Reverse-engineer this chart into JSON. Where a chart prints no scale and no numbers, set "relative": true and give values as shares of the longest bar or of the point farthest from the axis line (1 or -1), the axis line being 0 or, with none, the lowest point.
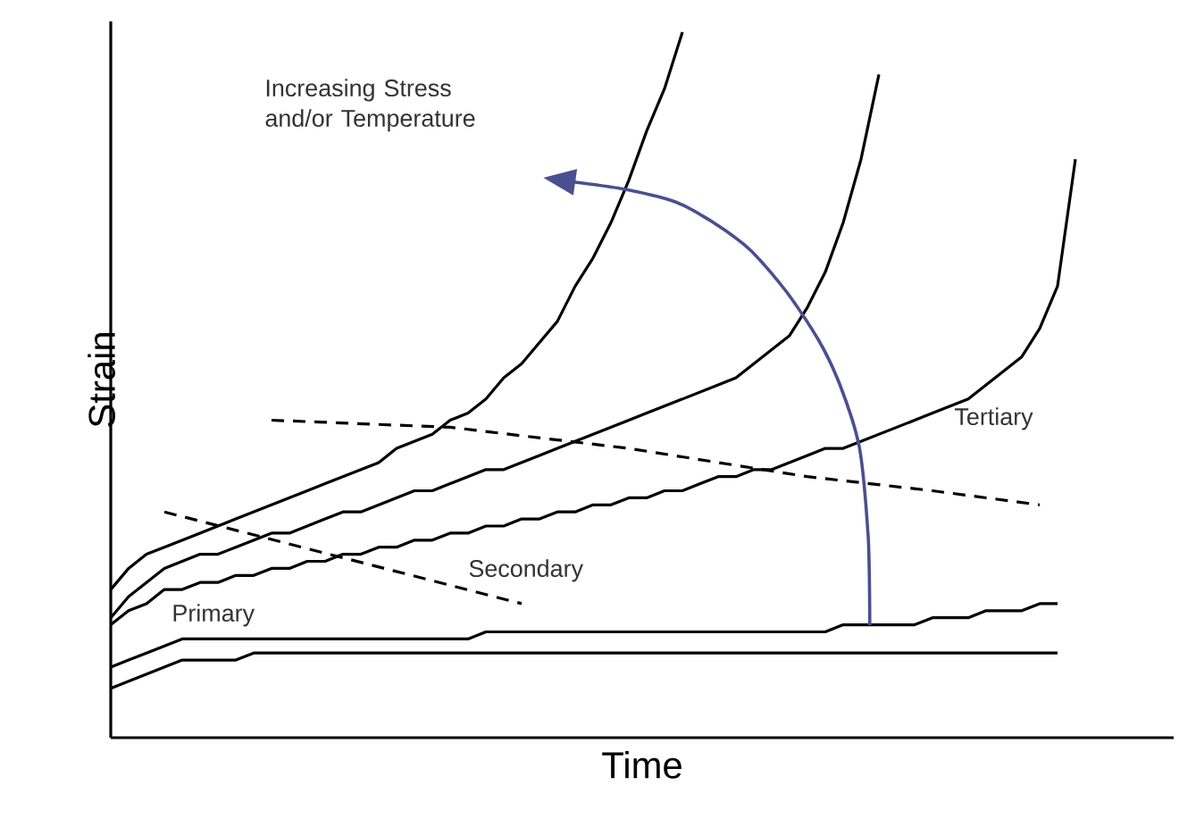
{
  "chart_data": {
    "type": "line",
    "relative": true,
    "xlabel": "Time",
    "ylabel": "Strain",
    "marker": "none",
    "annotations": [
      "Increasing Stress and/or Temperature",
      "Primary",
      "Secondary",
      "Tertiary"
    ],
    "categories": [
      null,
      null,
      null,
      null,
      null,
      null,
      null,
      null,
      null,
      null,
      null,
      null,
      null,
      null,
      null,
      null,
      null,
      null,
      null,
      null,
      null,
      null,
      null,
      null,
      null,
      null,
      null,
      null,
      null,
      null,
      null,
      null,
      null,
      null,
      null,
      null,
      null,
      null,
      null,
      null,
      null,
      null,
      null,
      null,
      null,
      null,
      null,
      null,
      null,
      null,
      null,
      null,
      null,
      null,
      null,
      null,
      null,
      null,
      null,
      null
    ],
    "series": [
      {
        "color": "#000000",
        "line_style": "solid",
        "values": [
          0.07,
          0.08,
          0.09,
          0.1,
          0.11,
          0.11,
          0.11,
          0.11,
          0.12,
          0.12,
          0.12,
          0.12,
          0.12,
          0.12,
          0.12,
          0.12,
          0.12,
          0.12,
          0.12,
          0.12,
          0.12,
          0.12,
          0.12,
          0.12,
          0.12,
          0.12,
          0.12,
          0.12,
          0.12,
          0.12,
          0.12,
          0.12,
          0.12,
          0.12,
          0.12,
          0.12,
          0.12,
          0.12,
          0.12,
          0.12,
          0.12,
          0.12,
          0.12,
          0.12,
          0.12,
          0.12,
          0.12,
          0.12,
          0.12,
          0.12,
          0.12,
          0.12,
          0.12,
          0.12,
          null,
          null,
          null,
          null,
          null,
          null
        ]
      },
      {
        "color": "#000000",
        "line_style": "solid",
        "values": [
          0.1,
          0.11,
          0.12,
          0.13,
          0.14,
          0.14,
          0.14,
          0.14,
          0.14,
          0.14,
          0.14,
          0.14,
          0.14,
          0.14,
          0.14,
          0.14,
          0.14,
          0.14,
          0.14,
          0.14,
          0.14,
          0.15,
          0.15,
          0.15,
          0.15,
          0.15,
          0.15,
          0.15,
          0.15,
          0.15,
          0.15,
          0.15,
          0.15,
          0.15,
          0.15,
          0.15,
          0.15,
          0.15,
          0.15,
          0.15,
          0.15,
          0.16,
          0.16,
          0.16,
          0.16,
          0.16,
          0.17,
          0.17,
          0.17,
          0.18,
          0.18,
          0.18,
          0.19,
          0.19,
          null,
          null,
          null,
          null,
          null,
          null
        ]
      },
      {
        "color": "#000000",
        "line_style": "solid",
        "values": [
          0.16,
          0.18,
          0.19,
          0.21,
          0.21,
          0.22,
          0.22,
          0.23,
          0.23,
          0.24,
          0.24,
          0.25,
          0.25,
          0.26,
          0.26,
          0.27,
          0.27,
          0.28,
          0.28,
          0.29,
          0.29,
          0.3,
          0.3,
          0.31,
          0.31,
          0.32,
          0.32,
          0.33,
          0.33,
          0.34,
          0.34,
          0.35,
          0.35,
          0.36,
          0.37,
          0.37,
          0.38,
          0.38,
          0.39,
          0.4,
          0.41,
          0.41,
          0.42,
          0.43,
          0.44,
          0.45,
          0.46,
          0.47,
          0.48,
          0.5,
          0.52,
          0.54,
          0.58,
          0.64,
          0.82,
          null,
          null,
          null,
          null,
          null
        ]
      },
      {
        "color": "#000000",
        "line_style": "solid",
        "values": [
          0.17,
          0.2,
          0.22,
          0.24,
          0.25,
          0.26,
          0.26,
          0.27,
          0.28,
          0.29,
          0.29,
          0.3,
          0.31,
          0.32,
          0.32,
          0.33,
          0.34,
          0.35,
          0.35,
          0.36,
          0.37,
          0.38,
          0.38,
          0.39,
          0.4,
          0.41,
          0.42,
          0.43,
          0.44,
          0.45,
          0.46,
          0.47,
          0.48,
          0.49,
          0.5,
          0.51,
          0.53,
          0.55,
          0.57,
          0.61,
          0.66,
          0.73,
          0.82,
          0.94,
          null,
          null,
          null,
          null,
          null,
          null,
          null,
          null,
          null,
          null,
          null,
          null,
          null,
          null,
          null,
          null
        ]
      },
      {
        "color": "#000000",
        "line_style": "solid",
        "values": [
          0.21,
          0.24,
          0.26,
          0.27,
          0.28,
          0.29,
          0.3,
          0.31,
          0.32,
          0.33,
          0.34,
          0.35,
          0.36,
          0.37,
          0.38,
          0.39,
          0.41,
          0.42,
          0.43,
          0.45,
          0.46,
          0.48,
          0.51,
          0.53,
          0.56,
          0.59,
          0.64,
          0.68,
          0.73,
          0.79,
          0.86,
          0.92,
          1.0,
          null,
          null,
          null,
          null,
          null,
          null,
          null,
          null,
          null,
          null,
          null,
          null,
          null,
          null,
          null,
          null,
          null,
          null,
          null,
          null,
          null,
          null,
          null,
          null,
          null,
          null,
          null
        ]
      },
      {
        "color": "#000000",
        "line_style": "dashed",
        "values": [
          null,
          null,
          null,
          0.32,
          null,
          null,
          null,
          null,
          null,
          null,
          null,
          null,
          null,
          null,
          null,
          null,
          null,
          null,
          null,
          null,
          null,
          null,
          null,
          0.19,
          null,
          null,
          null,
          null,
          null,
          null,
          null,
          null,
          null,
          null,
          null,
          null,
          null,
          null,
          null,
          null,
          null,
          null,
          null,
          null,
          null,
          null,
          null,
          null,
          null,
          null,
          null,
          null,
          null,
          null,
          null,
          null,
          null,
          null,
          null,
          null
        ]
      },
      {
        "color": "#000000",
        "line_style": "dashed",
        "values": [
          null,
          null,
          null,
          null,
          null,
          null,
          null,
          null,
          null,
          0.45,
          null,
          null,
          null,
          null,
          null,
          null,
          null,
          null,
          null,
          0.44,
          null,
          null,
          null,
          null,
          null,
          null,
          null,
          null,
          null,
          0.41,
          null,
          null,
          null,
          null,
          null,
          null,
          null,
          null,
          null,
          0.37,
          null,
          null,
          null,
          null,
          null,
          null,
          0.35,
          null,
          null,
          null,
          null,
          null,
          0.33,
          null,
          null,
          null,
          null,
          null,
          null,
          null
        ]
      }
    ]
  }
}
